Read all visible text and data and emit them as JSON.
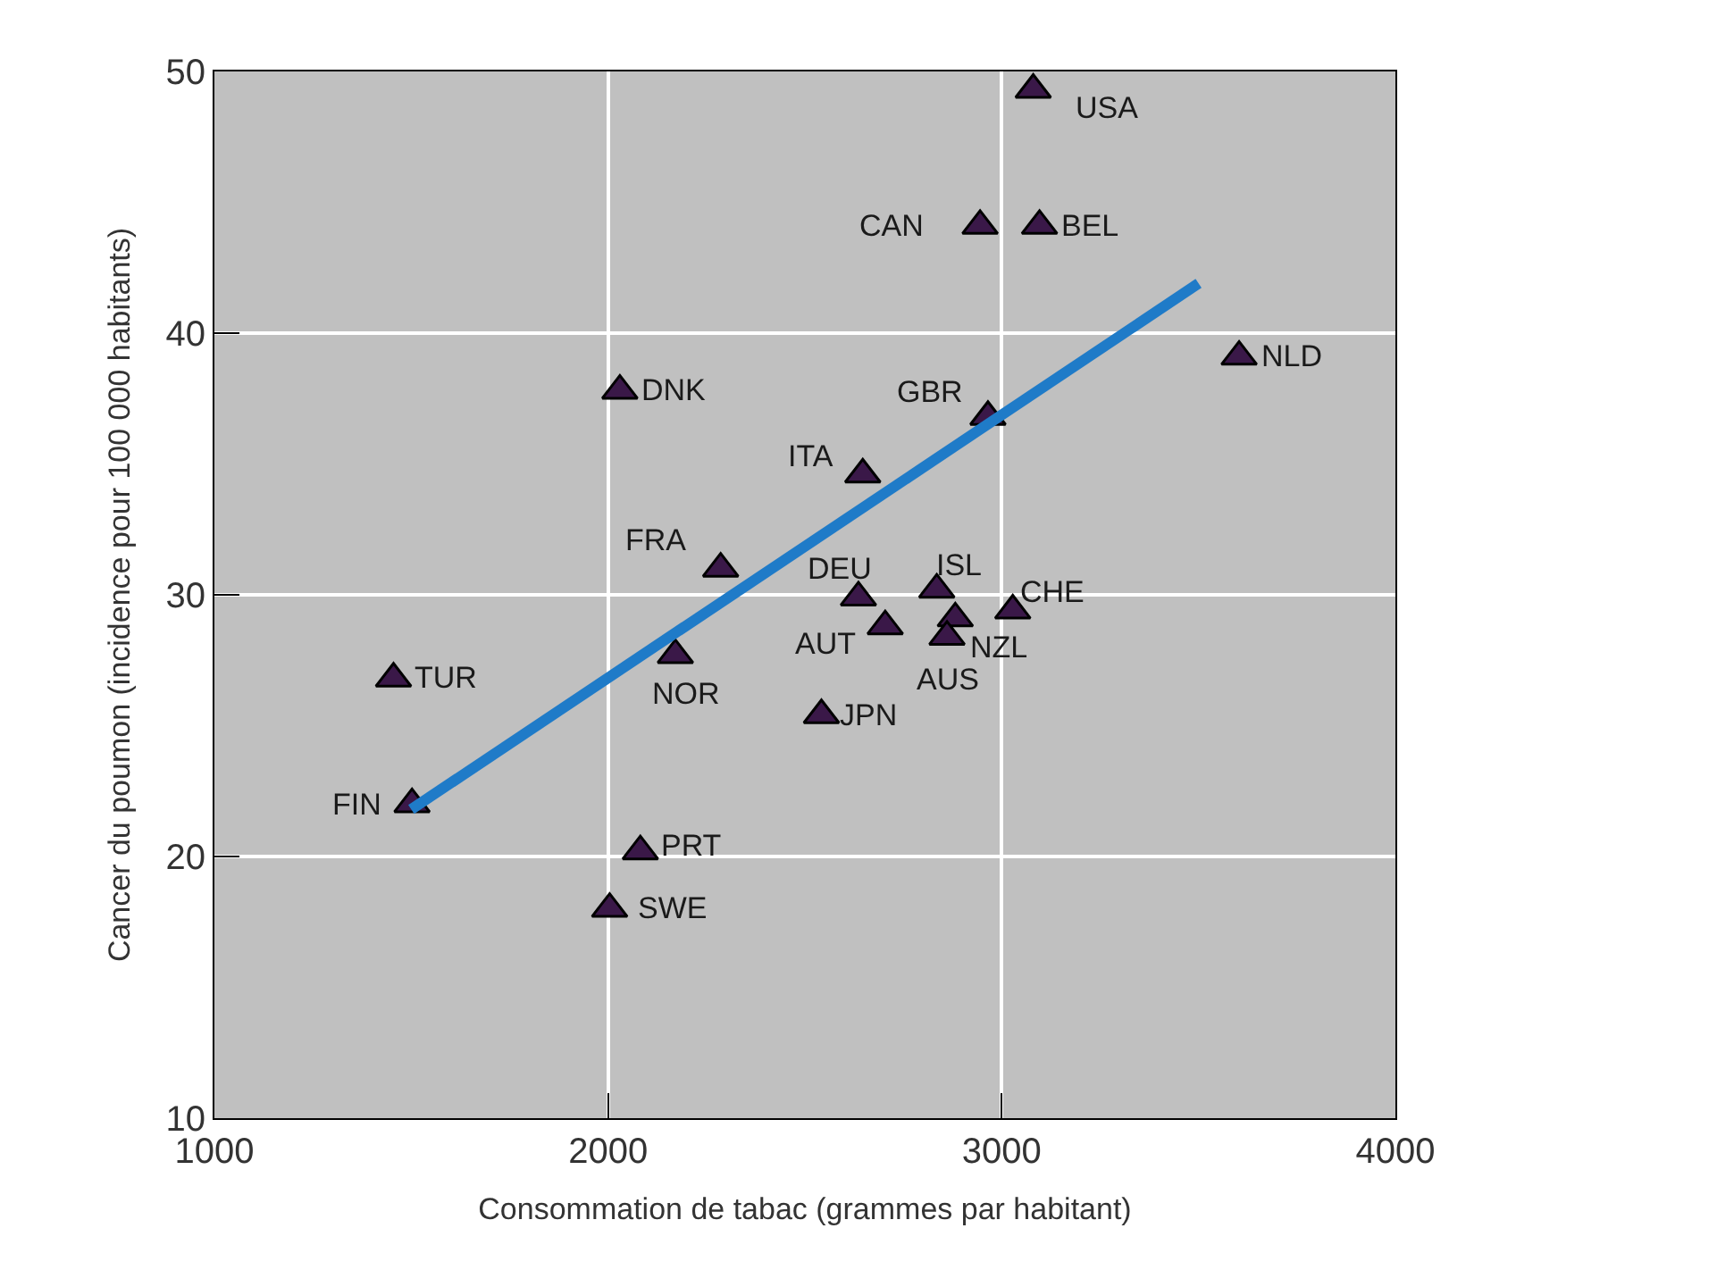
{
  "chart_data": {
    "type": "scatter",
    "xlabel": "Consommation de tabac (grammes par habitant)",
    "ylabel": "Cancer du poumon (incidence pour 100 000 habitants)",
    "xlim": [
      1000,
      4000
    ],
    "xticks": [
      1000,
      2000,
      3000,
      4000
    ],
    "ylim": [
      10,
      50
    ],
    "yticks": [
      10,
      20,
      30,
      40,
      50
    ],
    "grid": true,
    "marker": "triangle",
    "series": [
      {
        "color": "#3a1848",
        "x": [
          3080,
          2945,
          3096,
          3603,
          2030,
          2965,
          2647,
          2286,
          2636,
          2835,
          3028,
          2704,
          2882,
          2861,
          2171,
          1455,
          2542,
          1502,
          2082,
          2004
        ],
        "values": [
          49.3,
          44.1,
          44.1,
          39.1,
          37.8,
          36.8,
          34.6,
          31.0,
          29.9,
          30.2,
          29.4,
          28.8,
          29.1,
          28.4,
          27.7,
          26.8,
          25.4,
          22.0,
          20.2,
          18.0
        ]
      },
      {
        "type": "line",
        "marker": "none",
        "color": "#1f7bc8",
        "x": [
          1500,
          3500
        ],
        "values": [
          21.8,
          41.9
        ]
      }
    ],
    "annotations": [
      {
        "text": "USA",
        "x": 3080,
        "y": 49.3
      },
      {
        "text": "CAN",
        "x": 2945,
        "y": 44.1
      },
      {
        "text": "BEL",
        "x": 3096,
        "y": 44.1
      },
      {
        "text": "NLD",
        "x": 3603,
        "y": 39.1
      },
      {
        "text": "DNK",
        "x": 2030,
        "y": 37.8
      },
      {
        "text": "GBR",
        "x": 2965,
        "y": 36.8
      },
      {
        "text": "ITA",
        "x": 2647,
        "y": 34.6
      },
      {
        "text": "FRA",
        "x": 2286,
        "y": 31.0
      },
      {
        "text": "DEU",
        "x": 2636,
        "y": 29.9
      },
      {
        "text": "ISL",
        "x": 2835,
        "y": 30.2
      },
      {
        "text": "CHE",
        "x": 3028,
        "y": 29.4
      },
      {
        "text": "AUT",
        "x": 2704,
        "y": 28.8
      },
      {
        "text": "NZL",
        "x": 2882,
        "y": 29.1
      },
      {
        "text": "AUS",
        "x": 2861,
        "y": 28.4
      },
      {
        "text": "NOR",
        "x": 2171,
        "y": 27.7
      },
      {
        "text": "TUR",
        "x": 1455,
        "y": 26.8
      },
      {
        "text": "JPN",
        "x": 2542,
        "y": 25.4
      },
      {
        "text": "FIN",
        "x": 1502,
        "y": 22.0
      },
      {
        "text": "PRT",
        "x": 2082,
        "y": 20.2
      },
      {
        "text": "SWE",
        "x": 2004,
        "y": 18.0
      }
    ]
  }
}
